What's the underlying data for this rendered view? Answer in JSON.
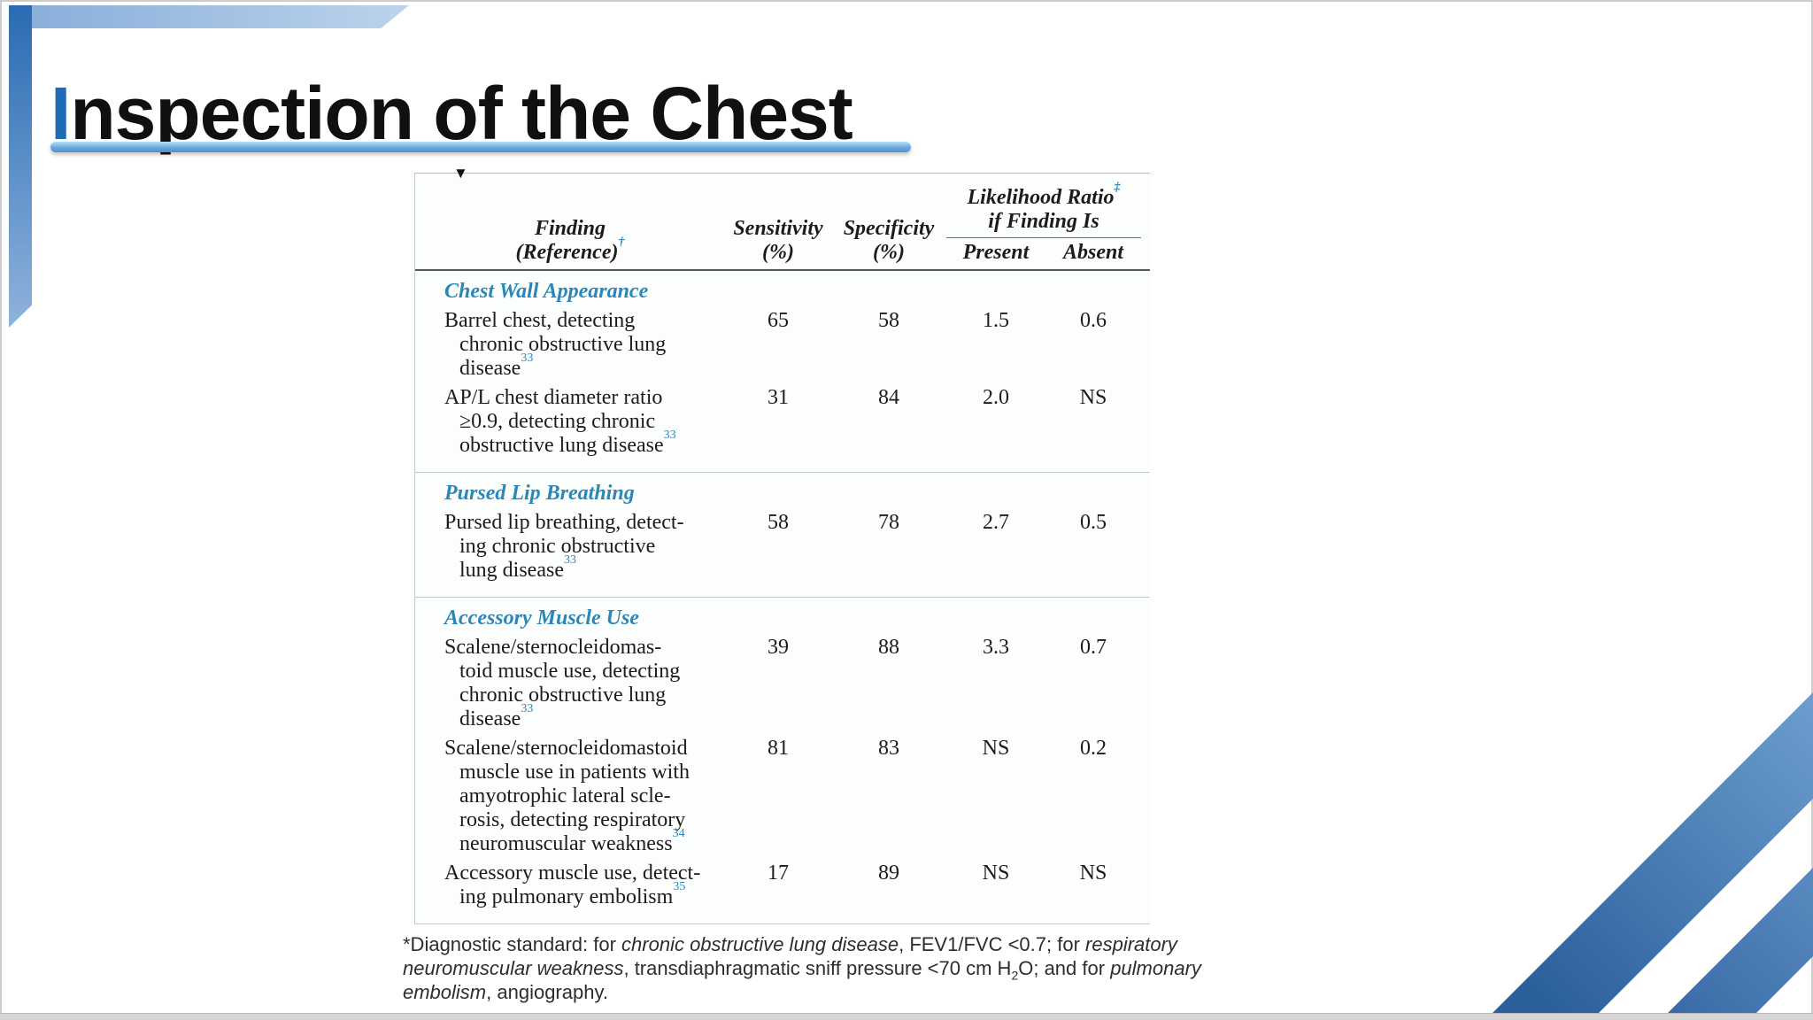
{
  "slide": {
    "title": [
      {
        "t": "I",
        "blue": true
      },
      {
        "t": "nspection of the Chest"
      }
    ],
    "accent_blue": "#1f6cb5",
    "heading_teal": "#2b87b8",
    "marker_icon": "▼"
  },
  "table": {
    "header": {
      "finding": [
        {
          "t": "Finding\n(Reference)"
        },
        {
          "t": "†",
          "sup": true,
          "blue": true
        }
      ],
      "sensitivity": "Sensitivity\n(%)",
      "specificity": "Specificity\n(%)",
      "likelihood": [
        {
          "t": "Likelihood Ratio"
        },
        {
          "t": "‡",
          "sup": true,
          "blue": true
        },
        {
          "t": "\nif Finding Is"
        }
      ],
      "present": "Present",
      "absent": "Absent"
    },
    "sections": [
      {
        "heading": "Chest Wall Appearance",
        "rows": [
          {
            "finding": [
              {
                "t": "Barrel chest, detecting\nchronic obstructive lung\ndisease"
              },
              {
                "t": "33",
                "sup": true,
                "blue": true
              }
            ],
            "sensitivity": "65",
            "specificity": "58",
            "lr_present": "1.5",
            "lr_absent": "0.6"
          },
          {
            "finding": [
              {
                "t": "AP/L chest diameter ratio\n≥0.9, detecting chronic\nobstructive lung disease"
              },
              {
                "t": "33",
                "sup": true,
                "blue": true
              }
            ],
            "sensitivity": "31",
            "specificity": "84",
            "lr_present": "2.0",
            "lr_absent": "NS"
          }
        ]
      },
      {
        "heading": "Pursed Lip Breathing",
        "rows": [
          {
            "finding": [
              {
                "t": "Pursed lip breathing, detect-\ning chronic obstructive\nlung disease"
              },
              {
                "t": "33",
                "sup": true,
                "blue": true
              }
            ],
            "sensitivity": "58",
            "specificity": "78",
            "lr_present": "2.7",
            "lr_absent": "0.5"
          }
        ]
      },
      {
        "heading": "Accessory Muscle Use",
        "rows": [
          {
            "finding": [
              {
                "t": "Scalene/sternocleidomas-\ntoid muscle use, detecting\nchronic obstructive lung\ndisease"
              },
              {
                "t": "33",
                "sup": true,
                "blue": true
              }
            ],
            "sensitivity": "39",
            "specificity": "88",
            "lr_present": "3.3",
            "lr_absent": "0.7"
          },
          {
            "finding": [
              {
                "t": "Scalene/sternocleidomastoid\nmuscle use in patients with\namyotrophic lateral scle-\nrosis, detecting respiratory\nneuromuscular weakness"
              },
              {
                "t": "34",
                "sup": true,
                "blue": true
              }
            ],
            "sensitivity": "81",
            "specificity": "83",
            "lr_present": "NS",
            "lr_absent": "0.2"
          },
          {
            "finding": [
              {
                "t": "Accessory muscle use, detect-\ning pulmonary embolism"
              },
              {
                "t": "35",
                "sup": true,
                "blue": true
              }
            ],
            "sensitivity": "17",
            "specificity": "89",
            "lr_present": "NS",
            "lr_absent": "NS"
          }
        ]
      }
    ]
  },
  "footnote": {
    "line1": [
      {
        "t": "*Diagnostic standard: for "
      },
      {
        "t": "chronic obstructive lung disease",
        "i": true
      },
      {
        "t": ", FEV1/FVC <0.7; for "
      },
      {
        "t": "respiratory",
        "i": true
      }
    ],
    "line2": [
      {
        "t": "neuromuscular weakness",
        "i": true
      },
      {
        "t": ", transdiaphragmatic sniff pressure <70 cm H"
      },
      {
        "t": "2",
        "sub": true
      },
      {
        "t": "O; and for "
      },
      {
        "t": "pulmonary",
        "i": true
      }
    ],
    "line3": [
      {
        "t": "embolism",
        "i": true
      },
      {
        "t": ", angiography."
      }
    ]
  }
}
